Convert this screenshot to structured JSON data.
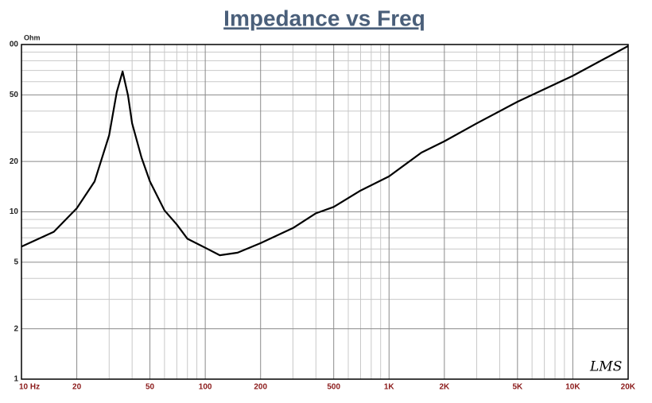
{
  "chart_data": {
    "type": "line",
    "title": "Impedance vs Freq",
    "y_label": "Ohm",
    "annotation": "LMS",
    "log_x": true,
    "log_y": true,
    "grid": true,
    "xlim": [
      10,
      20000
    ],
    "ylim": [
      1,
      100
    ],
    "xticks": [
      {
        "value": 10,
        "label": "10 Hz"
      },
      20,
      50,
      100,
      200,
      500,
      {
        "value": 1000,
        "label": "1K"
      },
      {
        "value": 2000,
        "label": "2K"
      },
      {
        "value": 5000,
        "label": "5K"
      },
      {
        "value": 10000,
        "label": "10K"
      },
      {
        "value": 20000,
        "label": "20K"
      }
    ],
    "yticks": [
      1,
      2,
      5,
      10,
      20,
      50,
      {
        "value": 100,
        "label": "00"
      }
    ],
    "xminorticks": [
      30,
      40,
      60,
      70,
      80,
      90,
      300,
      400,
      600,
      700,
      800,
      900,
      3000,
      4000,
      6000,
      7000,
      8000,
      9000
    ],
    "yminorticks": [
      3,
      4,
      6,
      7,
      8,
      9,
      30,
      40,
      60,
      70,
      80,
      90
    ],
    "series": [
      {
        "color": "#000000",
        "x": [
          10,
          15,
          20,
          25,
          30,
          33,
          35.5,
          38,
          40,
          45,
          50,
          60,
          70,
          80,
          100,
          120,
          150,
          200,
          300,
          400,
          500,
          700,
          1000,
          1500,
          2000,
          3000,
          5000,
          10000,
          20000
        ],
        "values": [
          6.2,
          7.6,
          10.5,
          15.2,
          28.7,
          52,
          69,
          49.6,
          33.8,
          21.1,
          15.2,
          10.2,
          8.4,
          6.9,
          6.1,
          5.5,
          5.7,
          6.5,
          8.0,
          9.8,
          10.7,
          13.4,
          16.3,
          22.6,
          26.4,
          33.8,
          45.5,
          65,
          98
        ]
      }
    ]
  }
}
